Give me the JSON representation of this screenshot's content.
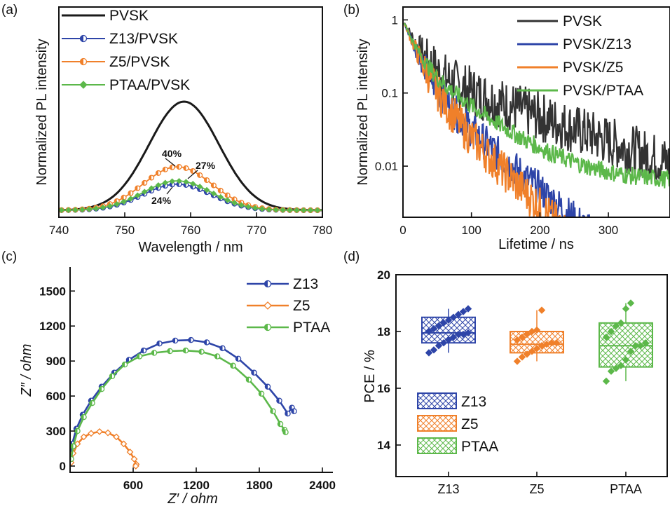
{
  "figure": {
    "panel_labels": [
      "(a)",
      "(b)",
      "(c)",
      "(d)"
    ]
  },
  "colors": {
    "PVSK": "#1a1a1a",
    "Z13": "#2e45a8",
    "Z5": "#f0802a",
    "PTAA": "#5cb84a",
    "PVSK_b": "#333333"
  },
  "chart_data": [
    {
      "panel": "(a)",
      "type": "line",
      "xlabel": "Wavelength / nm",
      "ylabel": "Normalized PL intensity",
      "xlim": [
        740,
        780
      ],
      "xticks": [
        "740",
        "750",
        "760",
        "770",
        "780"
      ],
      "ylim": [
        0,
        1.05
      ],
      "yticks_shown": false,
      "legend": {
        "placement": "top-left"
      },
      "series": [
        {
          "name": "PVSK",
          "color": "#1a1a1a",
          "marker": "none",
          "peak_x": 759,
          "peak": 1.0,
          "sigma": 5.3
        },
        {
          "name": "Z13/PVSK",
          "color": "#2e45a8",
          "marker": "circle-half",
          "peak_x": 758,
          "peak": 0.24,
          "sigma": 5.2
        },
        {
          "name": "Z5/PVSK",
          "color": "#f0802a",
          "marker": "circle-half",
          "peak_x": 758,
          "peak": 0.4,
          "sigma": 5.2
        },
        {
          "name": "PTAA/PVSK",
          "color": "#5cb84a",
          "marker": "diamond",
          "peak_x": 758,
          "peak": 0.27,
          "sigma": 5.2
        }
      ],
      "annotations": [
        "40%",
        "27%",
        "24%"
      ]
    },
    {
      "panel": "(b)",
      "type": "line",
      "xlabel": "Lifetime / ns",
      "ylabel": "Normalized PL intensity",
      "xlim": [
        0,
        390
      ],
      "xticks": [
        "0",
        "100",
        "200",
        "300"
      ],
      "yscale": "log",
      "ylim": [
        0.002,
        1.5
      ],
      "yticks": [
        "1",
        "0.1",
        "0.01"
      ],
      "legend": {
        "placement": "top-right"
      },
      "series": [
        {
          "name": "PVSK",
          "color": "#333333",
          "A1": 0.78,
          "tau1": 18,
          "A2": 0.22,
          "tau2": 130,
          "noise": 0.7,
          "floor": 0.0
        },
        {
          "name": "PVSK/Z13",
          "color": "#2e45a8",
          "A1": 0.82,
          "tau1": 17,
          "A2": 0.18,
          "tau2": 55,
          "noise": 0.5,
          "floor": 0.0
        },
        {
          "name": "PVSK/Z5",
          "color": "#f0802a",
          "A1": 0.82,
          "tau1": 17,
          "A2": 0.18,
          "tau2": 48,
          "noise": 0.55,
          "floor": 0.0
        },
        {
          "name": "PVSK/PTAA",
          "color": "#5cb84a",
          "A1": 0.7,
          "tau1": 15,
          "A2": 0.3,
          "tau2": 62,
          "noise": 0.25,
          "floor": 0.006
        }
      ]
    },
    {
      "panel": "(c)",
      "type": "line",
      "xlabel": "Z′ / ohm",
      "ylabel": "Z″ / ohm",
      "xlim": [
        0,
        2500
      ],
      "xticks": [
        "600",
        "1200",
        "1800",
        "2400"
      ],
      "ylim": [
        -30,
        1700
      ],
      "yticks": [
        "0",
        "300",
        "600",
        "900",
        "1200",
        "1500"
      ],
      "legend": {
        "placement": "top-right"
      },
      "series": [
        {
          "name": "Z13",
          "color": "#2e45a8",
          "x": [
            5,
            20,
            60,
            120,
            200,
            300,
            420,
            560,
            700,
            850,
            1000,
            1150,
            1300,
            1450,
            1600,
            1750,
            1880,
            1990,
            2070,
            2110,
            2130
          ],
          "y": [
            80,
            190,
            320,
            440,
            560,
            680,
            800,
            910,
            990,
            1050,
            1075,
            1080,
            1060,
            1010,
            920,
            800,
            680,
            560,
            450,
            500,
            470
          ]
        },
        {
          "name": "Z5",
          "color": "#f0802a",
          "x": [
            10,
            30,
            70,
            130,
            200,
            280,
            360,
            440,
            510,
            570,
            610,
            630,
            625
          ],
          "y": [
            30,
            110,
            190,
            250,
            280,
            295,
            285,
            250,
            190,
            120,
            60,
            15,
            0
          ]
        },
        {
          "name": "PTAA",
          "color": "#5cb84a",
          "x": [
            10,
            30,
            70,
            130,
            210,
            300,
            400,
            520,
            660,
            800,
            950,
            1100,
            1250,
            1400,
            1550,
            1700,
            1820,
            1930,
            2000,
            2040,
            2050
          ],
          "y": [
            60,
            170,
            300,
            420,
            540,
            660,
            770,
            870,
            940,
            970,
            985,
            990,
            980,
            940,
            860,
            740,
            620,
            470,
            360,
            310,
            290
          ]
        }
      ]
    },
    {
      "panel": "(d)",
      "type": "box",
      "ylabel": "PCE / %",
      "ylim": [
        13,
        20
      ],
      "yticks": [
        "14",
        "16",
        "18",
        "20"
      ],
      "categories": [
        "Z13",
        "Z5",
        "PTAA"
      ],
      "legend": {
        "placement": "bottom-left"
      },
      "series": [
        {
          "name": "Z13",
          "color": "#2e45a8",
          "q1": 17.6,
          "median": 17.95,
          "q3": 18.5,
          "whisker_low": 17.25,
          "whisker_high": 18.8,
          "points": [
            17.25,
            17.35,
            17.5,
            17.6,
            17.7,
            17.8,
            17.9,
            17.9,
            17.95,
            18.0,
            18.1,
            18.2,
            18.3,
            18.4,
            18.5,
            18.6,
            18.7,
            18.8
          ]
        },
        {
          "name": "Z5",
          "color": "#f0802a",
          "q1": 17.25,
          "median": 17.55,
          "q3": 18.0,
          "whisker_low": 16.95,
          "whisker_high": 18.75,
          "points": [
            16.95,
            17.1,
            17.2,
            17.3,
            17.4,
            17.5,
            17.55,
            17.6,
            17.6,
            17.7,
            17.8,
            17.9,
            18.0,
            18.05,
            18.75
          ]
        },
        {
          "name": "PTAA",
          "color": "#5cb84a",
          "q1": 16.75,
          "median": 17.5,
          "q3": 18.3,
          "whisker_low": 16.25,
          "whisker_high": 19.0,
          "points": [
            16.25,
            16.6,
            16.7,
            16.8,
            17.0,
            17.3,
            17.5,
            17.5,
            17.6,
            17.8,
            18.0,
            18.2,
            18.3,
            18.8,
            19.0
          ]
        }
      ]
    }
  ]
}
